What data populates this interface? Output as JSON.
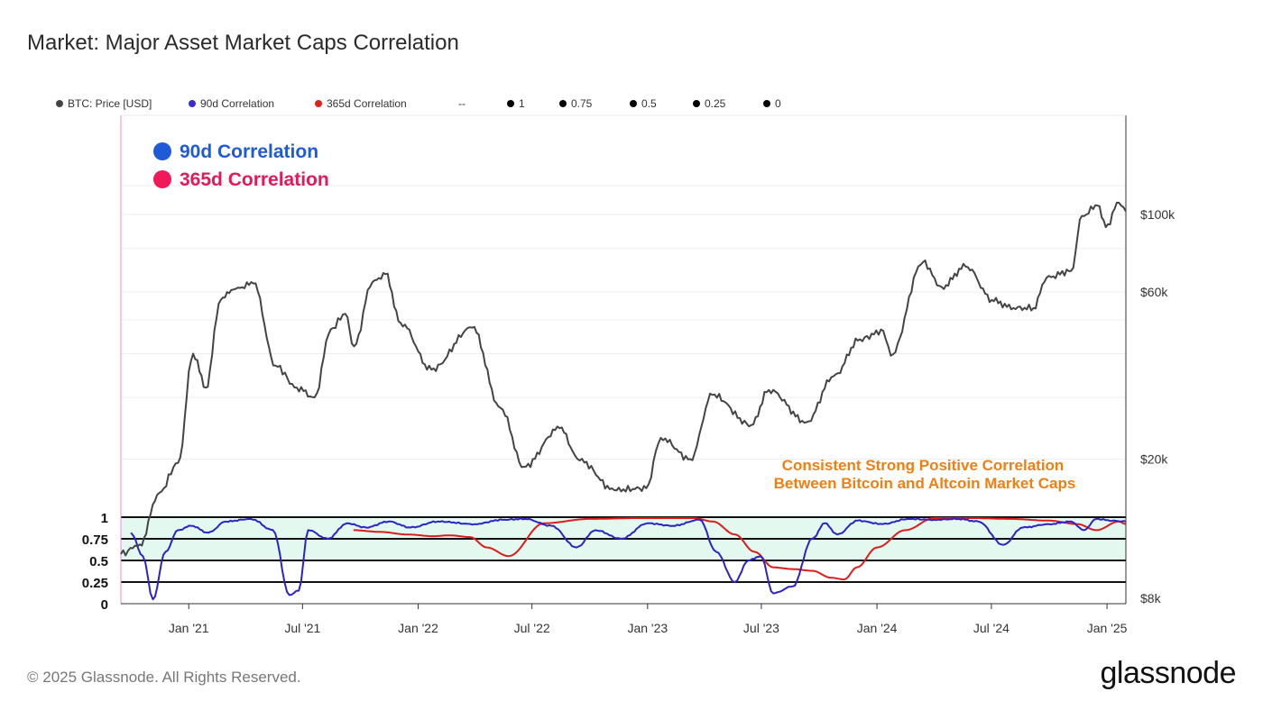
{
  "title": "Market: Major Asset Market Caps Correlation",
  "legend": [
    {
      "label": "BTC: Price [USD]",
      "color": "#444444"
    },
    {
      "label": "90d Correlation",
      "color": "#3a2bd6"
    },
    {
      "label": "365d Correlation",
      "color": "#e8201c"
    },
    {
      "label": "--",
      "color": ""
    },
    {
      "label": "1",
      "color": "#000000"
    },
    {
      "label": "0.75",
      "color": "#000000"
    },
    {
      "label": "0.5",
      "color": "#000000"
    },
    {
      "label": "0.25",
      "color": "#000000"
    },
    {
      "label": "0",
      "color": "#000000"
    }
  ],
  "annotations": {
    "series90": "90d Correlation",
    "series365": "365d Correlation",
    "callout_line1": "Consistent Strong Positive Correlation",
    "callout_line2": "Between Bitcoin and Altcoin Market Caps"
  },
  "footer": "© 2025 Glassnode. All Rights Reserved.",
  "logo": "glassnode",
  "chart_data": {
    "type": "line",
    "title": "Market: Major Asset Market Caps Correlation",
    "x_ticks": [
      "Jan '21",
      "Jul '21",
      "Jan '22",
      "Jul '22",
      "Jan '23",
      "Jul '23",
      "Jan '24",
      "Jul '24",
      "Jan '25"
    ],
    "y_price_ticks": [
      "$100k",
      "$60k",
      "$20k",
      "$8k"
    ],
    "y_price_tick_values": [
      100000,
      60000,
      20000,
      8000
    ],
    "y_corr_ticks": [
      "1",
      "0.75",
      "0.5",
      "0.25",
      "0"
    ],
    "y_corr_tick_values": [
      1,
      0.75,
      0.5,
      0.25,
      0
    ],
    "reference_lines": [
      1,
      0.75,
      0.5,
      0.25,
      0
    ],
    "x_range": [
      "2020-09-15",
      "2025-01-31"
    ],
    "colors": {
      "price": "#444444",
      "corr90": "#2d22c4",
      "corr365": "#dd1c1c",
      "band": "#e3f8ee",
      "annot90": "#1f5bd6",
      "annot365": "#e3195a",
      "callout": "#f07f12"
    },
    "series": [
      {
        "name": "BTC: Price [USD]",
        "axis": "price",
        "x": [
          "2020-09-15",
          "2020-10-15",
          "2020-11-15",
          "2020-12-15",
          "2021-01-08",
          "2021-01-28",
          "2021-02-21",
          "2021-03-13",
          "2021-04-14",
          "2021-05-19",
          "2021-06-22",
          "2021-07-20",
          "2021-08-15",
          "2021-09-07",
          "2021-09-21",
          "2021-10-20",
          "2021-11-10",
          "2021-12-04",
          "2022-01-22",
          "2022-03-28",
          "2022-05-12",
          "2022-06-18",
          "2022-08-14",
          "2022-09-15",
          "2022-11-09",
          "2022-12-30",
          "2023-01-22",
          "2023-03-10",
          "2023-04-14",
          "2023-06-15",
          "2023-07-13",
          "2023-09-11",
          "2023-10-24",
          "2023-12-05",
          "2024-01-11",
          "2024-01-23",
          "2024-03-14",
          "2024-04-13",
          "2024-05-21",
          "2024-07-05",
          "2024-08-05",
          "2024-09-06",
          "2024-09-27",
          "2024-11-05",
          "2024-11-22",
          "2024-12-17",
          "2024-12-30",
          "2025-01-20",
          "2025-01-31"
        ],
        "y": [
          10700,
          11400,
          16000,
          19500,
          40000,
          32000,
          57000,
          61000,
          63500,
          37000,
          32000,
          30000,
          47000,
          52000,
          42000,
          64000,
          67500,
          49000,
          36000,
          47500,
          28000,
          19000,
          24500,
          19800,
          16300,
          16500,
          23000,
          20000,
          30500,
          25000,
          31500,
          25500,
          34500,
          44000,
          46500,
          39500,
          73000,
          62000,
          71000,
          56500,
          54000,
          54000,
          66000,
          69000,
          99000,
          106000,
          92000,
          108000,
          102000
        ]
      },
      {
        "name": "90d Correlation",
        "axis": "corr",
        "x": [
          "2020-10-01",
          "2020-10-20",
          "2020-11-05",
          "2020-11-25",
          "2020-12-15",
          "2021-01-05",
          "2021-02-01",
          "2021-03-01",
          "2021-04-10",
          "2021-05-15",
          "2021-06-10",
          "2021-06-25",
          "2021-07-10",
          "2021-08-10",
          "2021-09-10",
          "2021-10-10",
          "2021-11-15",
          "2021-12-20",
          "2022-02-01",
          "2022-04-01",
          "2022-05-15",
          "2022-06-20",
          "2022-08-01",
          "2022-09-10",
          "2022-10-10",
          "2022-11-20",
          "2023-01-01",
          "2023-02-10",
          "2023-03-25",
          "2023-04-20",
          "2023-05-20",
          "2023-06-10",
          "2023-06-30",
          "2023-07-20",
          "2023-08-20",
          "2023-09-20",
          "2023-10-10",
          "2023-10-30",
          "2023-12-01",
          "2024-01-10",
          "2024-02-20",
          "2024-04-01",
          "2024-05-10",
          "2024-06-10",
          "2024-07-20",
          "2024-08-20",
          "2024-10-01",
          "2024-11-05",
          "2024-11-25",
          "2024-12-15",
          "2025-01-10",
          "2025-01-31"
        ],
        "y": [
          0.82,
          0.55,
          0.05,
          0.6,
          0.85,
          0.9,
          0.82,
          0.95,
          0.98,
          0.85,
          0.1,
          0.15,
          0.85,
          0.75,
          0.93,
          0.88,
          0.95,
          0.88,
          0.95,
          0.92,
          0.97,
          0.98,
          0.9,
          0.65,
          0.85,
          0.75,
          0.93,
          0.9,
          0.97,
          0.6,
          0.25,
          0.5,
          0.55,
          0.12,
          0.2,
          0.75,
          0.93,
          0.8,
          0.96,
          0.92,
          0.98,
          0.97,
          0.98,
          0.95,
          0.68,
          0.88,
          0.92,
          0.95,
          0.85,
          0.98,
          0.96,
          0.95
        ]
      },
      {
        "name": "365d Correlation",
        "axis": "corr",
        "x": [
          "2021-09-20",
          "2021-11-01",
          "2021-12-15",
          "2022-01-25",
          "2022-02-20",
          "2022-03-25",
          "2022-04-20",
          "2022-05-25",
          "2022-07-20",
          "2022-10-01",
          "2022-12-20",
          "2023-02-15",
          "2023-03-15",
          "2023-04-15",
          "2023-05-20",
          "2023-06-20",
          "2023-07-20",
          "2023-08-20",
          "2023-09-20",
          "2023-10-20",
          "2023-11-10",
          "2023-11-30",
          "2024-01-01",
          "2024-02-15",
          "2024-04-01",
          "2024-06-01",
          "2024-08-01",
          "2024-10-01",
          "2024-11-15",
          "2024-12-15",
          "2025-01-20",
          "2025-01-31"
        ],
        "y": [
          0.85,
          0.83,
          0.8,
          0.78,
          0.79,
          0.77,
          0.65,
          0.55,
          0.93,
          0.98,
          0.99,
          0.99,
          0.99,
          0.95,
          0.8,
          0.6,
          0.42,
          0.4,
          0.38,
          0.3,
          0.28,
          0.42,
          0.65,
          0.85,
          0.99,
          0.99,
          0.98,
          0.96,
          0.92,
          0.85,
          0.95,
          0.92
        ]
      }
    ]
  }
}
